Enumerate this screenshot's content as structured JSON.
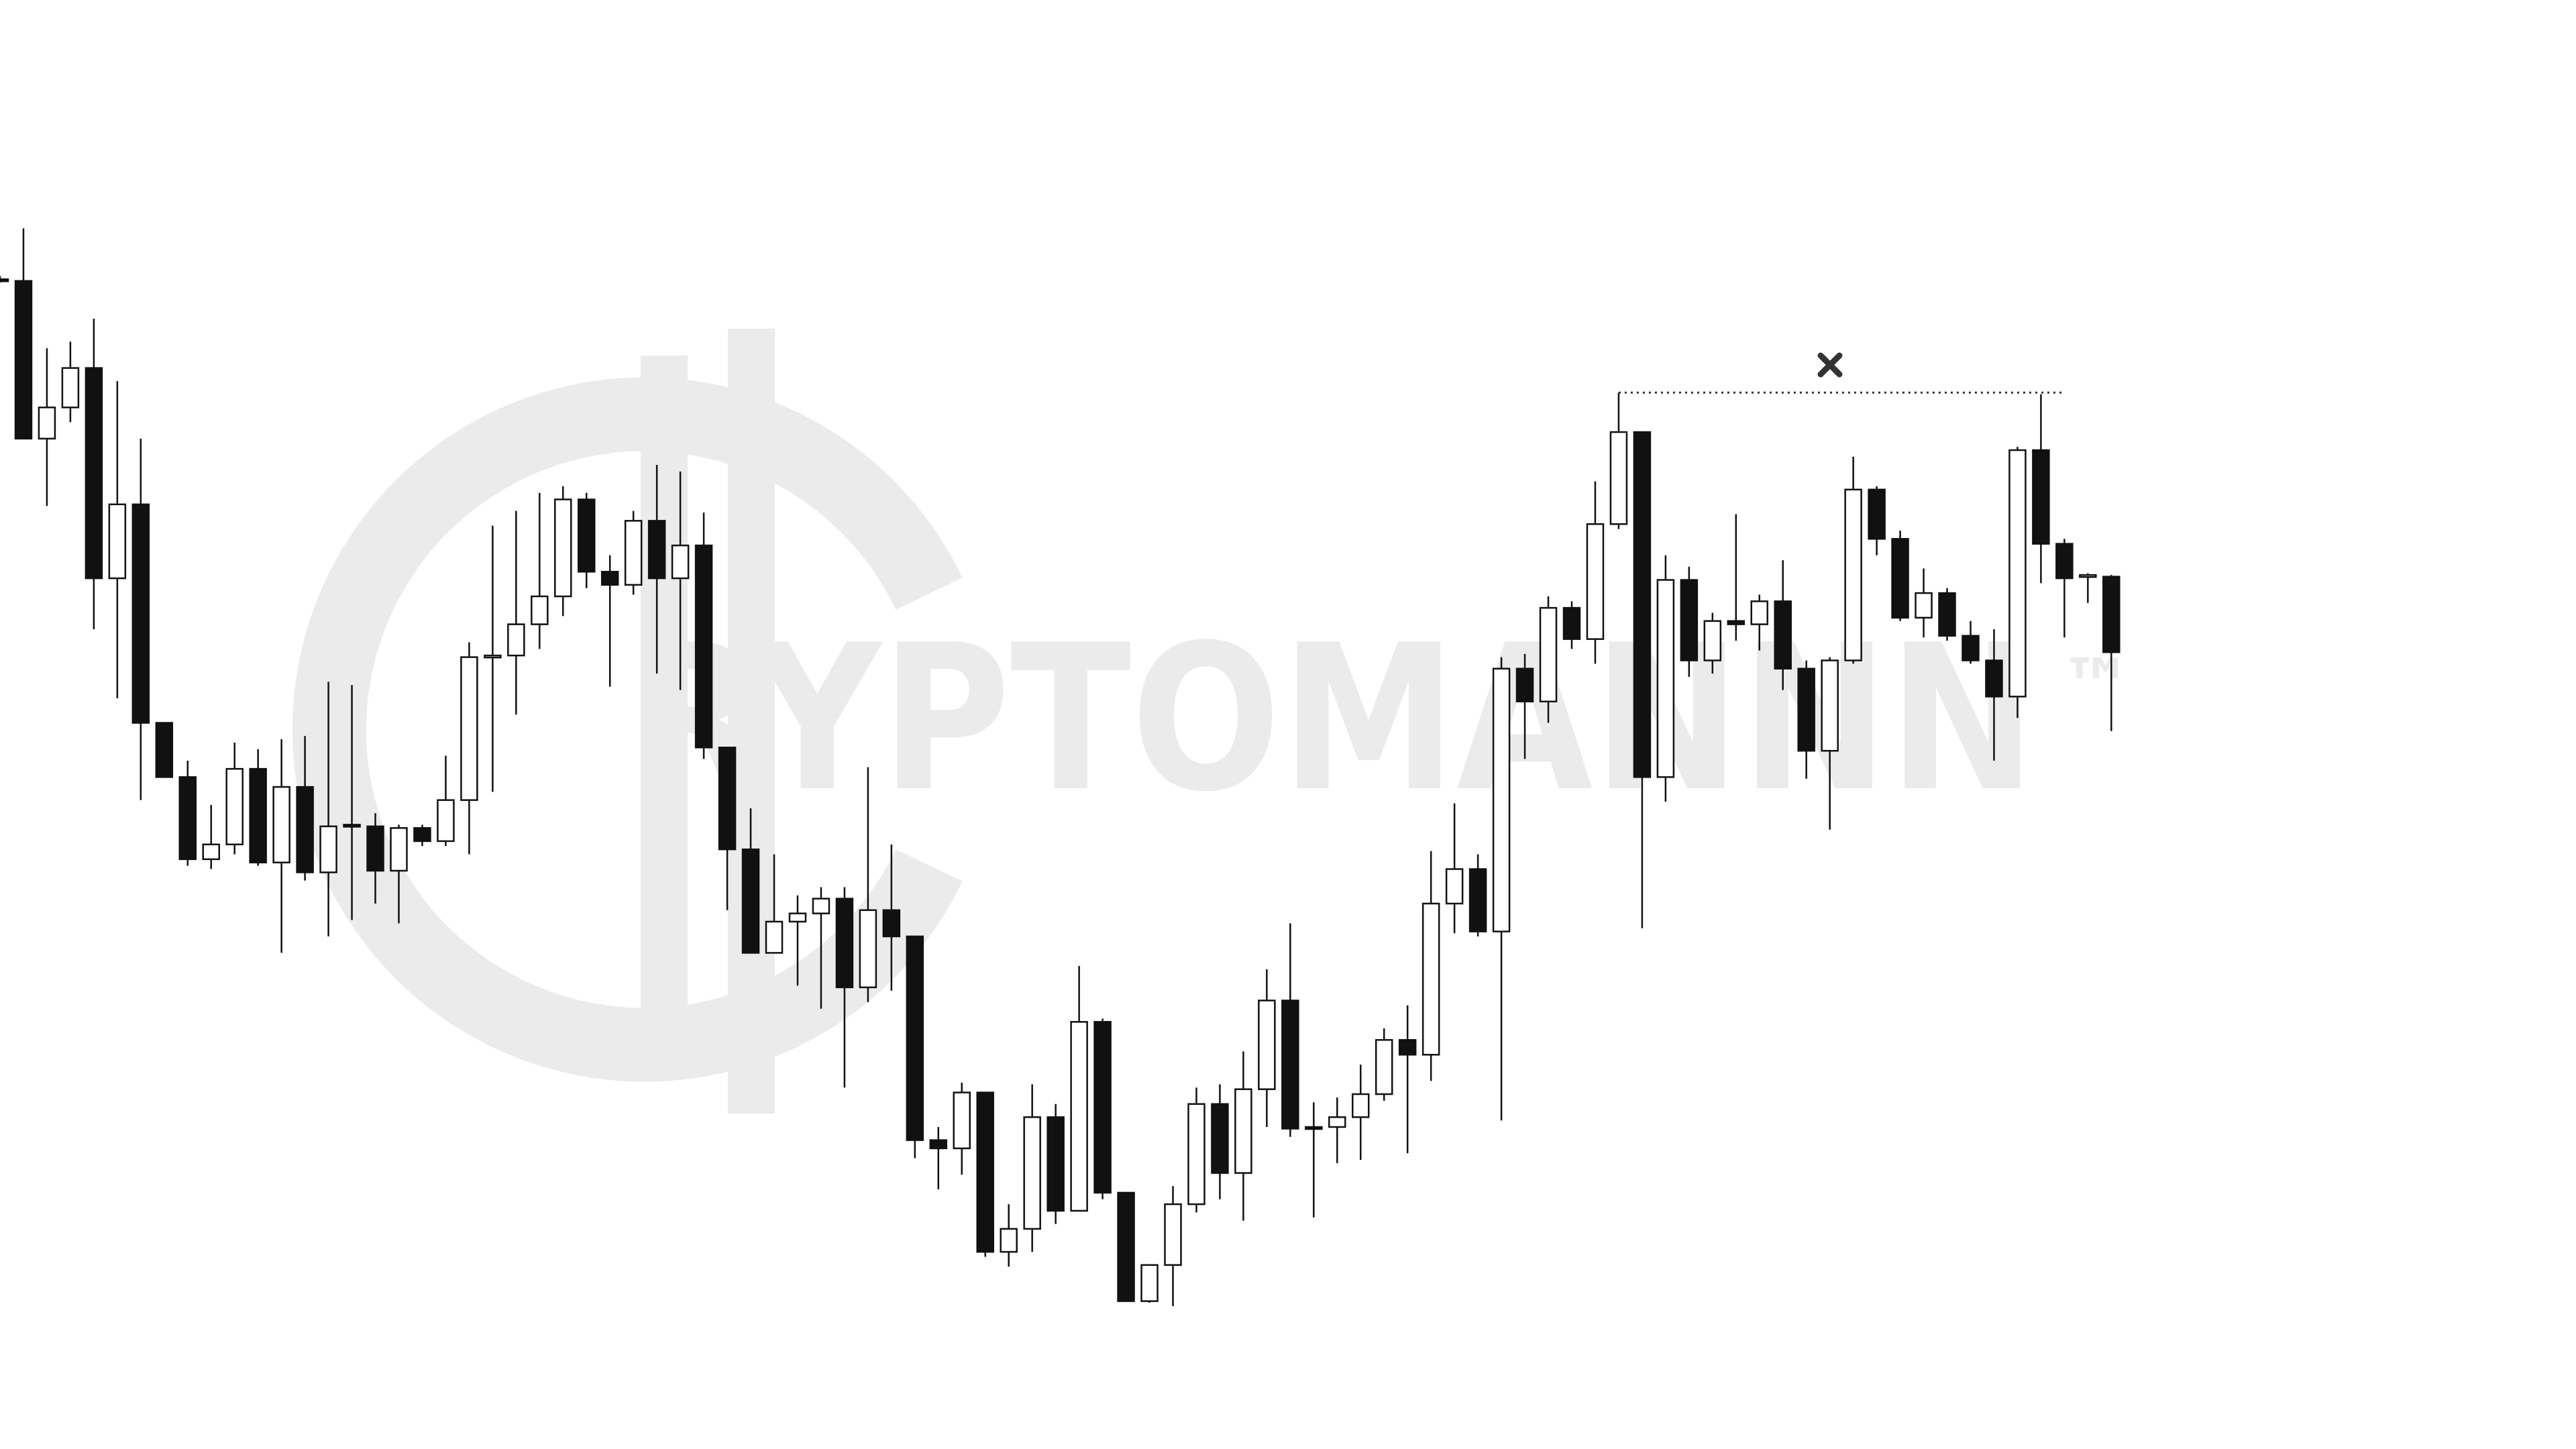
{
  "chart_data": {
    "type": "candlestick",
    "watermark": "RYPTOMANNN",
    "trademark": "™",
    "ylim": [
      18,
      900
    ],
    "up_color": "#ffffff",
    "down_color": "#111111",
    "open": [
      730,
      729,
      633,
      652,
      676,
      548,
      593,
      460,
      427,
      377,
      386,
      432,
      375,
      421,
      369,
      398,
      397,
      370,
      396,
      388,
      413,
      500,
      501,
      520,
      537,
      596,
      552,
      544,
      583,
      548,
      568,
      445,
      383,
      320,
      339,
      344,
      353,
      299,
      346,
      330,
      206,
      201,
      235,
      138,
      152,
      220,
      163,
      278,
      174,
      108,
      130,
      167,
      228,
      186,
      237,
      291,
      214,
      214,
      220,
      234,
      267,
      258,
      350,
      371,
      333,
      493,
      473,
      530,
      511,
      581,
      637,
      427,
      547,
      498,
      522,
      520,
      534,
      493,
      443,
      498,
      602,
      572,
      524,
      539,
      513,
      498,
      476,
      626,
      569,
      549,
      549
    ],
    "high": [
      732,
      761,
      688,
      692,
      706,
      668,
      633,
      460,
      437,
      410,
      448,
      444,
      450,
      452,
      485,
      483,
      405,
      398,
      398,
      440,
      509,
      580,
      589,
      600,
      604,
      600,
      562,
      589,
      617,
      613,
      588,
      445,
      408,
      380,
      355,
      360,
      360,
      433,
      386,
      330,
      214,
      241,
      235,
      167,
      240,
      228,
      312,
      280,
      174,
      130,
      178,
      238,
      240,
      260,
      310,
      338,
      229,
      232,
      252,
      274,
      288,
      382,
      411,
      380,
      500,
      502,
      537,
      534,
      607,
      661,
      637,
      562,
      555,
      527,
      587,
      538,
      559,
      498,
      500,
      622,
      604,
      577,
      554,
      542,
      522,
      517,
      628,
      660,
      572,
      551,
      550
    ],
    "low": [
      728,
      633,
      592,
      643,
      517,
      475,
      413,
      427,
      373,
      371,
      380,
      373,
      320,
      364,
      330,
      340,
      350,
      338,
      385,
      385,
      380,
      418,
      465,
      505,
      525,
      542,
      482,
      538,
      490,
      480,
      438,
      346,
      320,
      320,
      300,
      286,
      238,
      290,
      297,
      195,
      176,
      185,
      135,
      129,
      138,
      155,
      163,
      170,
      108,
      107,
      105,
      162,
      170,
      157,
      214,
      208,
      159,
      192,
      194,
      230,
      198,
      242,
      332,
      330,
      218,
      438,
      460,
      505,
      496,
      578,
      335,
      412,
      488,
      490,
      510,
      504,
      480,
      426,
      395,
      496,
      562,
      522,
      512,
      510,
      496,
      437,
      463,
      545,
      512,
      533,
      455
    ],
    "close": [
      729,
      633,
      652,
      676,
      548,
      593,
      460,
      427,
      377,
      386,
      432,
      375,
      421,
      369,
      397,
      397,
      370,
      396,
      388,
      413,
      500,
      501,
      520,
      537,
      596,
      552,
      544,
      583,
      548,
      568,
      445,
      383,
      320,
      339,
      344,
      353,
      299,
      346,
      330,
      206,
      201,
      235,
      138,
      152,
      220,
      163,
      278,
      174,
      108,
      130,
      167,
      228,
      186,
      237,
      291,
      213,
      213,
      220,
      234,
      267,
      258,
      350,
      371,
      333,
      493,
      473,
      530,
      511,
      581,
      637,
      427,
      547,
      498,
      522,
      520,
      534,
      493,
      443,
      498,
      602,
      572,
      524,
      539,
      513,
      498,
      476,
      626,
      569,
      548,
      550,
      503
    ],
    "hline": 661
  }
}
